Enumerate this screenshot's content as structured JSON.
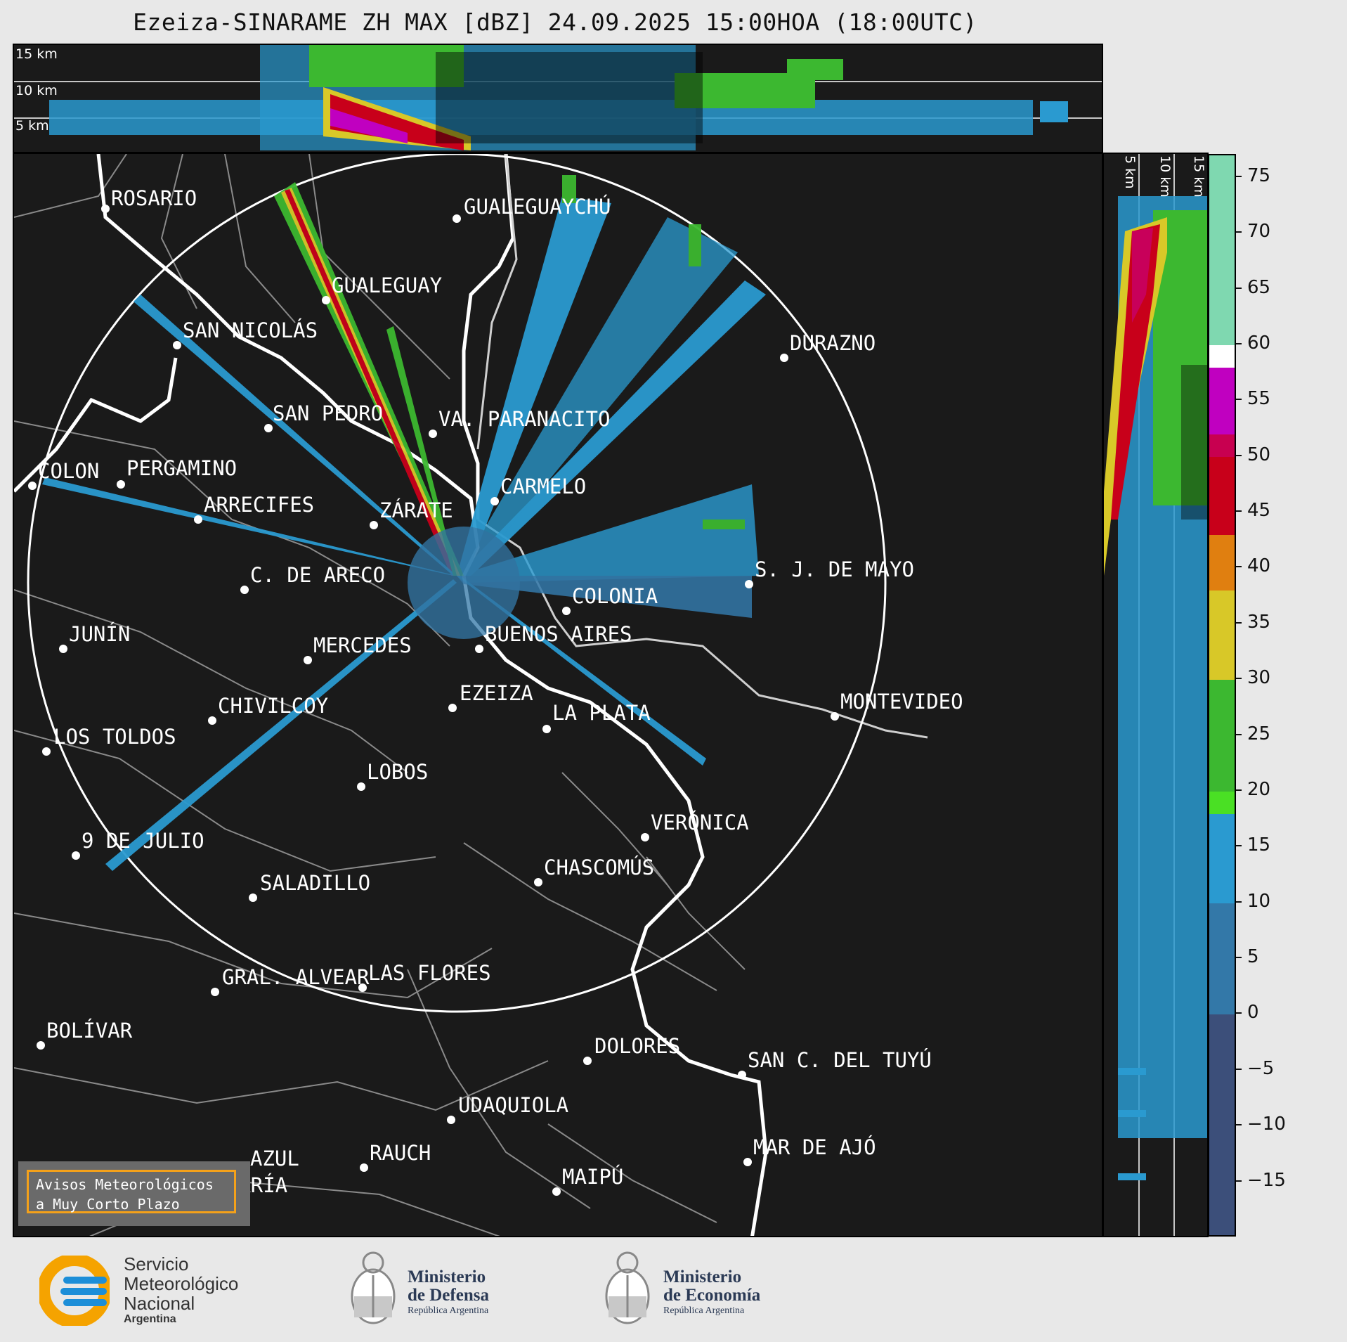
{
  "title": "Ezeiza-SINARAME ZH MAX [dBZ] 24.09.2025 15:00HOA (18:00UTC)",
  "altitude_labels_top": [
    "15 km",
    "10 km",
    "5 km"
  ],
  "altitude_labels_side": [
    "5 km",
    "10 km",
    "15 km"
  ],
  "cities": [
    {
      "name": "ROSARIO"
    },
    {
      "name": "GUALEGUAYCHÚ"
    },
    {
      "name": "GUALEGUAY"
    },
    {
      "name": "SAN NICOLÁS"
    },
    {
      "name": "DURAZNO"
    },
    {
      "name": "SAN PEDRO"
    },
    {
      "name": "VA. PARANACITO"
    },
    {
      "name": "COLON"
    },
    {
      "name": "PERGAMINO"
    },
    {
      "name": "CARMELO"
    },
    {
      "name": "ARRECIFES"
    },
    {
      "name": "ZÁRATE"
    },
    {
      "name": "S. J. DE MAYO"
    },
    {
      "name": "C. DE ARECO"
    },
    {
      "name": "COLONIA"
    },
    {
      "name": "JUNÍN"
    },
    {
      "name": "BUENOS AIRES"
    },
    {
      "name": "MERCEDES"
    },
    {
      "name": "EZEIZA"
    },
    {
      "name": "MONTEVIDEO"
    },
    {
      "name": "CHIVILCOY"
    },
    {
      "name": "LA PLATA"
    },
    {
      "name": "LOS TOLDOS"
    },
    {
      "name": "LOBOS"
    },
    {
      "name": "VERÓNICA"
    },
    {
      "name": "9 DE JULIO"
    },
    {
      "name": "CHASCOMÚS"
    },
    {
      "name": "SALADILLO"
    },
    {
      "name": "GRAL. ALVEAR"
    },
    {
      "name": "LAS FLORES"
    },
    {
      "name": "BOLÍVAR"
    },
    {
      "name": "DOLORES"
    },
    {
      "name": "SAN C. DEL TUYÚ"
    },
    {
      "name": "UDAQUIOLA"
    },
    {
      "name": "MAR DE AJÓ"
    },
    {
      "name": "AZUL"
    },
    {
      "name": "RAUCH"
    },
    {
      "name": "OLAVARRÍA"
    },
    {
      "name": "MAIPÚ"
    }
  ],
  "colorbar": {
    "unit": "dBZ",
    "range": [
      -20,
      77
    ],
    "tick_labels": [
      "75",
      "70",
      "65",
      "60",
      "55",
      "50",
      "45",
      "40",
      "35",
      "30",
      "25",
      "20",
      "15",
      "10",
      "5",
      "0",
      "−5",
      "−10",
      "−15"
    ],
    "tick_values": [
      75,
      70,
      65,
      60,
      55,
      50,
      45,
      40,
      35,
      30,
      25,
      20,
      15,
      10,
      5,
      0,
      -5,
      -10,
      -15
    ],
    "bands": [
      {
        "from": 60,
        "to": 77,
        "color": "#7fd8b0"
      },
      {
        "from": 58,
        "to": 60,
        "color": "#ffffff"
      },
      {
        "from": 52,
        "to": 58,
        "color": "#c000c0"
      },
      {
        "from": 50,
        "to": 52,
        "color": "#c80050"
      },
      {
        "from": 43,
        "to": 50,
        "color": "#c8001a"
      },
      {
        "from": 38,
        "to": 43,
        "color": "#e07f10"
      },
      {
        "from": 30,
        "to": 38,
        "color": "#d8c828"
      },
      {
        "from": 20,
        "to": 30,
        "color": "#3cb830"
      },
      {
        "from": 18,
        "to": 20,
        "color": "#4ae024"
      },
      {
        "from": 10,
        "to": 18,
        "color": "#2a9ad0"
      },
      {
        "from": 0,
        "to": 10,
        "color": "#3378a8"
      },
      {
        "from": -20,
        "to": 0,
        "color": "#3c4f7a"
      }
    ]
  },
  "notice": {
    "line1": "Avisos Meteorológicos",
    "line2": "a Muy Corto Plazo"
  },
  "logos": {
    "smn": {
      "line1": "Servicio",
      "line2": "Meteorológico",
      "line3": "Nacional",
      "line4": "Argentina"
    },
    "defensa": {
      "line1": "Ministerio",
      "line2": "de Defensa",
      "line3": "República Argentina"
    },
    "economia": {
      "line1": "Ministerio",
      "line2": "de Economía",
      "line3": "República Argentina"
    }
  },
  "colors": {
    "background": "#1a1a1a",
    "coast": "#ffffff",
    "borders": "#8a8a8a",
    "accent_notice": "#f4a11a"
  }
}
